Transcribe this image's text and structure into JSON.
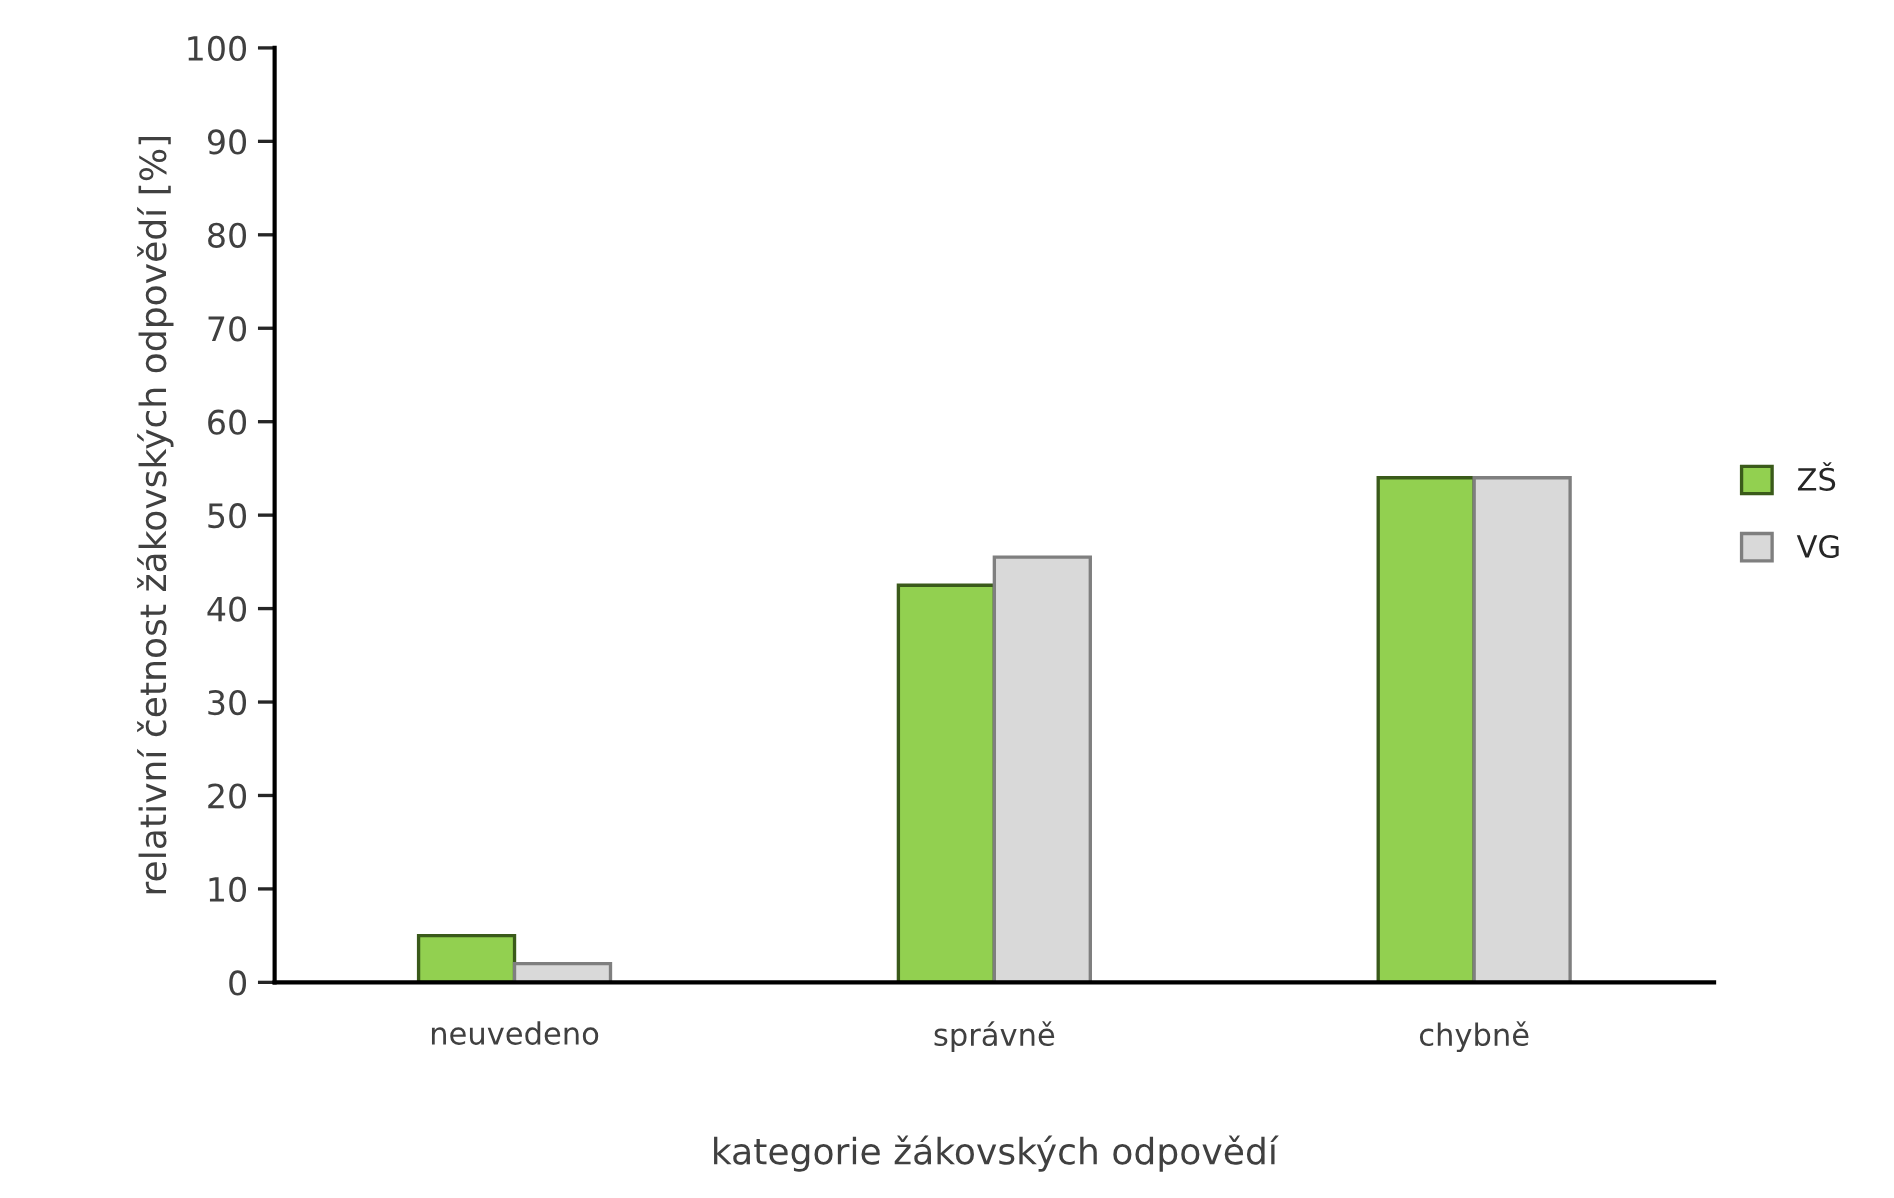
{
  "chart_data": {
    "type": "bar",
    "xlabel": "kategorie žákovských odpovědí",
    "ylabel": "relativní četnost žákovských odpovědí [%]",
    "categories": [
      "neuvedeno",
      "správně",
      "chybně"
    ],
    "series": [
      {
        "name": "ZŠ",
        "color": "#92d050",
        "values": [
          5,
          42.5,
          54
        ]
      },
      {
        "name": "VG",
        "color": "#d9d9d9",
        "values": [
          2,
          45.5,
          54
        ]
      }
    ],
    "ylim": [
      0,
      100
    ],
    "yticks": [
      0,
      10,
      20,
      30,
      40,
      50,
      60,
      70,
      80,
      90,
      100
    ],
    "grid": false,
    "legend": "right"
  }
}
